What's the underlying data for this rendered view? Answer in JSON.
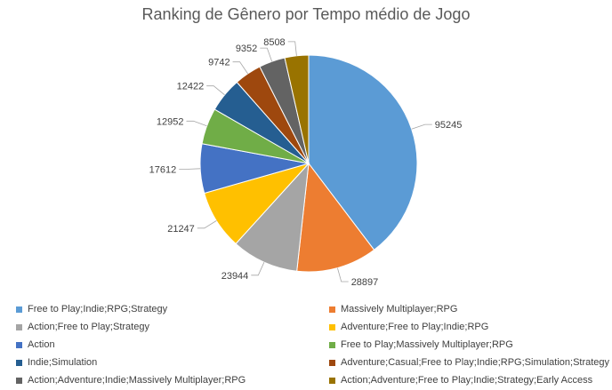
{
  "chart_data": {
    "type": "pie",
    "title": "Ranking de Gênero por  Tempo médio de Jogo",
    "categories": [
      "Free to Play;Indie;RPG;Strategy",
      "Massively Multiplayer;RPG",
      "Action;Free to Play;Strategy",
      "Adventure;Free to Play;Indie;RPG",
      "Action",
      "Free to Play;Massively Multiplayer;RPG",
      "Indie;Simulation",
      "Adventure;Casual;Free to Play;Indie;RPG;Simulation;Strategy",
      "Action;Adventure;Indie;Massively Multiplayer;RPG",
      "Action;Adventure;Free to Play;Indie;Strategy;Early Access"
    ],
    "values": [
      95245,
      28897,
      23944,
      21247,
      17612,
      12952,
      12422,
      9742,
      9352,
      8508
    ],
    "data_labels": [
      "95245",
      "28897",
      "23944",
      "21247",
      "17612",
      "12952",
      "12422",
      "9742",
      "9352",
      "8508"
    ],
    "colors": [
      "#5b9bd5",
      "#ed7d31",
      "#a5a5a5",
      "#ffc000",
      "#4472c4",
      "#70ad47",
      "#255e91",
      "#9e480e",
      "#636363",
      "#997300"
    ],
    "legend_position": "bottom",
    "start_angle": "top",
    "direction": "clockwise"
  }
}
